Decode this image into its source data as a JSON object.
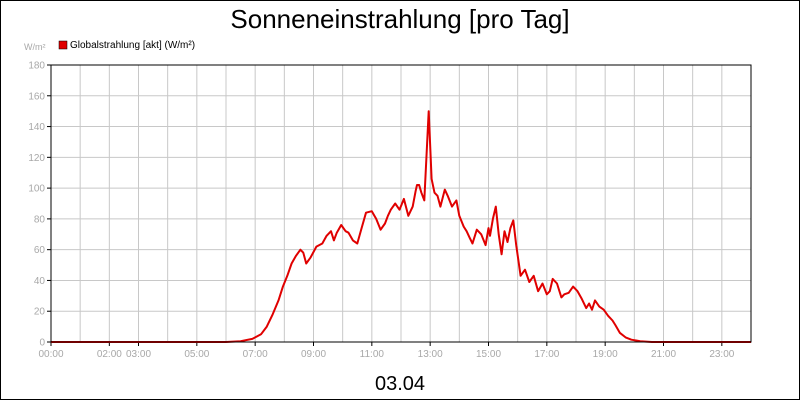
{
  "chart_data": {
    "type": "line",
    "title": "Sonneneinstrahlung [pro Tag]",
    "yunit": "W/m²",
    "xlabel": "03.04",
    "ylim": [
      0,
      180
    ],
    "xlim": [
      0,
      24
    ],
    "yticks": [
      0,
      20,
      40,
      60,
      80,
      100,
      120,
      140,
      160,
      180
    ],
    "xticks": [
      {
        "x": 0,
        "label": "00:00"
      },
      {
        "x": 2,
        "label": "02:00"
      },
      {
        "x": 3,
        "label": "03:00"
      },
      {
        "x": 5,
        "label": "05:00"
      },
      {
        "x": 7,
        "label": "07:00"
      },
      {
        "x": 9,
        "label": "09:00"
      },
      {
        "x": 11,
        "label": "11:00"
      },
      {
        "x": 13,
        "label": "13:00"
      },
      {
        "x": 15,
        "label": "15:00"
      },
      {
        "x": 17,
        "label": "17:00"
      },
      {
        "x": 19,
        "label": "19:00"
      },
      {
        "x": 21,
        "label": "21:00"
      },
      {
        "x": 23,
        "label": "23:00"
      }
    ],
    "grid": true,
    "legend_position": "top-left",
    "series": [
      {
        "name": "Globalstrahlung [akt] (W/m²)",
        "color": "#e00000",
        "x": [
          0,
          6,
          6.5,
          6.9,
          7.2,
          7.4,
          7.6,
          7.8,
          7.95,
          8.1,
          8.25,
          8.4,
          8.55,
          8.65,
          8.75,
          8.9,
          9.1,
          9.3,
          9.45,
          9.6,
          9.7,
          9.8,
          9.95,
          10.1,
          10.2,
          10.35,
          10.5,
          10.65,
          10.8,
          11.0,
          11.15,
          11.3,
          11.45,
          11.55,
          11.65,
          11.8,
          11.95,
          12.1,
          12.25,
          12.4,
          12.5,
          12.55,
          12.62,
          12.7,
          12.8,
          12.95,
          13.05,
          13.15,
          13.25,
          13.35,
          13.5,
          13.6,
          13.75,
          13.9,
          14.0,
          14.15,
          14.25,
          14.35,
          14.45,
          14.6,
          14.75,
          14.9,
          15.0,
          15.05,
          15.15,
          15.25,
          15.35,
          15.45,
          15.55,
          15.65,
          15.75,
          15.85,
          15.95,
          16.1,
          16.25,
          16.4,
          16.55,
          16.7,
          16.85,
          17.0,
          17.1,
          17.2,
          17.35,
          17.5,
          17.6,
          17.75,
          17.9,
          18.05,
          18.2,
          18.35,
          18.45,
          18.55,
          18.65,
          18.8,
          18.95,
          19.1,
          19.25,
          19.35,
          19.5,
          19.7,
          19.9,
          20.2,
          20.6,
          21,
          24
        ],
        "values": [
          0,
          0,
          0.5,
          2,
          5,
          10,
          18,
          27,
          36,
          43,
          51,
          56,
          60,
          58,
          51,
          55,
          62,
          64,
          69,
          72,
          66,
          71,
          76,
          72,
          71,
          66,
          64,
          74,
          84,
          85,
          80,
          73,
          77,
          82,
          86,
          90,
          86,
          93,
          82,
          88,
          98,
          102,
          102,
          97,
          92,
          150,
          106,
          97,
          95,
          88,
          99,
          95,
          88,
          92,
          82,
          75,
          72,
          68,
          64,
          73,
          70,
          63,
          74,
          69,
          80,
          88,
          70,
          57,
          72,
          65,
          74,
          79,
          63,
          43,
          47,
          39,
          43,
          33,
          38,
          31,
          33,
          41,
          38,
          29,
          31,
          32,
          36,
          33,
          28,
          22,
          25,
          21,
          27,
          23,
          21,
          17,
          14,
          11,
          6,
          3,
          1.5,
          0.5,
          0,
          0,
          0
        ]
      }
    ]
  }
}
